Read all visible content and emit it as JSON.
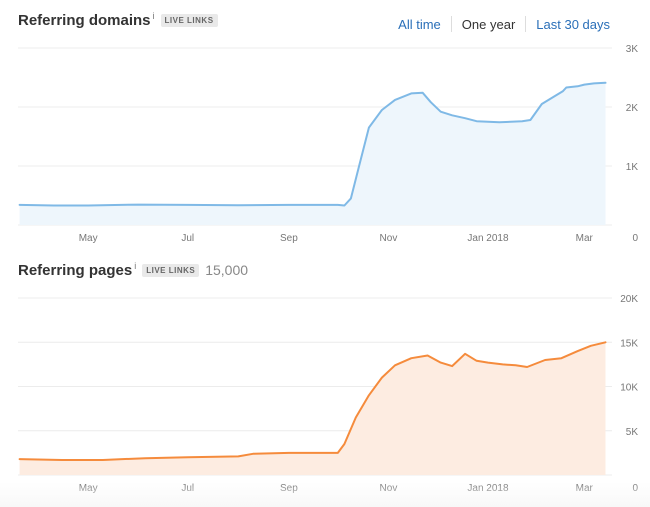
{
  "range_tabs": {
    "all_time": "All time",
    "one_year": "One year",
    "last_30_days": "Last 30 days",
    "active": "one_year"
  },
  "colors": {
    "domains_line": "#7fb9e6",
    "domains_fill": "#eef6fc",
    "pages_line": "#f58b3c",
    "pages_fill": "#fdece1",
    "grid": "#ececec",
    "tick": "#777777"
  },
  "chart_data": [
    {
      "type": "area",
      "title": "Referring domains",
      "info_mark": "i",
      "badge": "LIVE LINKS",
      "x_range": [
        "2017-03-19",
        "2018-03-18"
      ],
      "x_ticks": [
        {
          "date": "2017-05-01",
          "label": "May"
        },
        {
          "date": "2017-07-01",
          "label": "Jul"
        },
        {
          "date": "2017-09-01",
          "label": "Sep"
        },
        {
          "date": "2017-11-01",
          "label": "Nov"
        },
        {
          "date": "2018-01-01",
          "label": "Jan 2018"
        },
        {
          "date": "2018-03-01",
          "label": "Mar"
        }
      ],
      "y_ticks": [
        {
          "value": 0,
          "label": "0"
        },
        {
          "value": 1000,
          "label": "1K"
        },
        {
          "value": 2000,
          "label": "2K"
        },
        {
          "value": 3000,
          "label": "3K"
        }
      ],
      "ylim": [
        0,
        3000
      ],
      "series": [
        {
          "x": [
            "2017-03-20",
            "2017-04-10",
            "2017-05-01",
            "2017-06-01",
            "2017-07-01",
            "2017-08-01",
            "2017-09-01",
            "2017-10-01",
            "2017-10-05",
            "2017-10-09",
            "2017-10-14",
            "2017-10-20",
            "2017-10-28",
            "2017-11-05",
            "2017-11-15",
            "2017-11-22",
            "2017-11-27",
            "2017-12-03",
            "2017-12-10",
            "2017-12-18",
            "2017-12-25",
            "2018-01-01",
            "2018-01-08",
            "2018-01-15",
            "2018-01-22",
            "2018-01-27",
            "2018-02-03",
            "2018-02-10",
            "2018-02-16",
            "2018-02-18",
            "2018-02-25",
            "2018-03-01",
            "2018-03-07",
            "2018-03-14"
          ],
          "values": [
            340,
            330,
            330,
            345,
            340,
            335,
            340,
            340,
            330,
            450,
            1000,
            1650,
            1950,
            2120,
            2230,
            2240,
            2080,
            1920,
            1860,
            1810,
            1760,
            1750,
            1740,
            1750,
            1760,
            1780,
            2050,
            2170,
            2270,
            2330,
            2350,
            2380,
            2400,
            2410
          ]
        }
      ]
    },
    {
      "type": "area",
      "title": "Referring pages",
      "info_mark": "i",
      "badge": "LIVE LINKS",
      "count_label": "15,000",
      "x_range": [
        "2017-03-19",
        "2018-03-18"
      ],
      "x_ticks": [
        {
          "date": "2017-05-01",
          "label": "May"
        },
        {
          "date": "2017-07-01",
          "label": "Jul"
        },
        {
          "date": "2017-09-01",
          "label": "Sep"
        },
        {
          "date": "2017-11-01",
          "label": "Nov"
        },
        {
          "date": "2018-01-01",
          "label": "Jan 2018"
        },
        {
          "date": "2018-03-01",
          "label": "Mar"
        }
      ],
      "y_ticks": [
        {
          "value": 0,
          "label": "0"
        },
        {
          "value": 5000,
          "label": "5K"
        },
        {
          "value": 10000,
          "label": "10K"
        },
        {
          "value": 15000,
          "label": "15K"
        },
        {
          "value": 20000,
          "label": "20K"
        }
      ],
      "ylim": [
        0,
        20000
      ],
      "series": [
        {
          "x": [
            "2017-03-20",
            "2017-04-15",
            "2017-05-10",
            "2017-06-05",
            "2017-07-01",
            "2017-08-01",
            "2017-08-10",
            "2017-09-01",
            "2017-10-01",
            "2017-10-05",
            "2017-10-12",
            "2017-10-20",
            "2017-10-28",
            "2017-11-05",
            "2017-11-15",
            "2017-11-25",
            "2017-12-03",
            "2017-12-10",
            "2017-12-18",
            "2017-12-25",
            "2018-01-01",
            "2018-01-10",
            "2018-01-18",
            "2018-01-25",
            "2018-02-05",
            "2018-02-15",
            "2018-02-25",
            "2018-03-05",
            "2018-03-14"
          ],
          "values": [
            1800,
            1700,
            1700,
            1900,
            2000,
            2100,
            2400,
            2500,
            2500,
            3500,
            6500,
            9000,
            11000,
            12400,
            13200,
            13500,
            12700,
            12300,
            13700,
            12900,
            12700,
            12500,
            12400,
            12200,
            13000,
            13200,
            14000,
            14600,
            15000
          ]
        }
      ]
    }
  ]
}
